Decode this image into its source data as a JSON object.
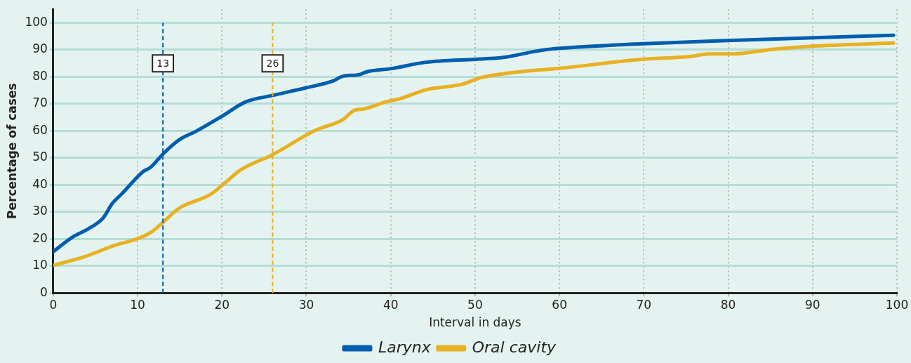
{
  "chart_data": {
    "type": "line",
    "xlabel": "Interval in days",
    "ylabel": "Percentage of cases",
    "xlim": [
      0,
      100
    ],
    "xticks": [
      0,
      10,
      20,
      30,
      40,
      50,
      60,
      70,
      80,
      90,
      100
    ],
    "ylim": [
      0,
      105
    ],
    "yticks": [
      0,
      10,
      20,
      30,
      40,
      50,
      60,
      70,
      80,
      90,
      100
    ],
    "grid": true,
    "legend": "bottom",
    "line_style": "solid",
    "marker": "none",
    "series": [
      {
        "name": "Larynx",
        "color": "#005eae",
        "x": [
          0,
          2.3,
          4.2,
          5.9,
          7.0,
          8.1,
          10.7,
          11.5,
          13.1,
          14.9,
          16.9,
          20.0,
          22.8,
          26.0,
          29.8,
          33.2,
          34.3,
          36.3,
          37.1,
          40.0,
          44.2,
          50.1,
          53.2,
          58.2,
          62.2,
          69.5,
          79.9,
          99.6
        ],
        "values": [
          15.3,
          20.7,
          23.8,
          27.7,
          33.1,
          36.6,
          45.0,
          46.4,
          51.7,
          56.6,
          59.8,
          65.4,
          70.7,
          73.1,
          75.8,
          78.5,
          80.2,
          80.8,
          81.8,
          83.0,
          85.4,
          86.5,
          87.1,
          90.0,
          91.0,
          92.2,
          93.4,
          95.4
        ]
      },
      {
        "name": "Oral cavity",
        "color": "#e8b122",
        "x": [
          0,
          3.7,
          7.3,
          10.1,
          11.8,
          13.1,
          14.9,
          18.6,
          20.3,
          22.2,
          26.0,
          31.0,
          34.3,
          35.7,
          36.8,
          39.4,
          41.1,
          44.2,
          48.4,
          50.6,
          55.7,
          59.9,
          69.5,
          75.7,
          77.7,
          80.7,
          85.2,
          89.7,
          99.6
        ],
        "values": [
          10.2,
          13.4,
          17.6,
          20.2,
          22.9,
          26.4,
          31.3,
          36.4,
          40.6,
          45.5,
          51.2,
          60.1,
          64.1,
          67.6,
          68.1,
          70.7,
          71.9,
          75.2,
          77.2,
          79.6,
          82.0,
          83.1,
          86.4,
          87.6,
          88.5,
          88.5,
          90.2,
          91.3,
          92.5
        ]
      }
    ],
    "ref_lines": [
      {
        "axis": "x",
        "value": 13,
        "label": "13",
        "color": "#005eae",
        "line_style": "dashed"
      },
      {
        "axis": "x",
        "value": 26,
        "label": "26",
        "color": "#e8b122",
        "line_style": "dashed"
      }
    ]
  }
}
